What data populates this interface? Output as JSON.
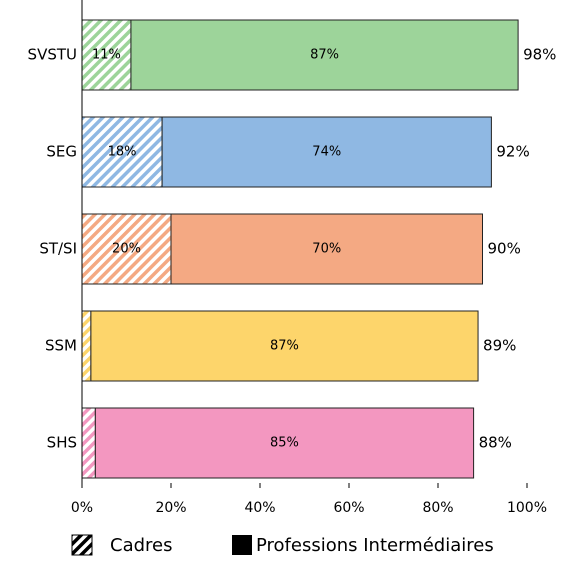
{
  "chart_data": {
    "type": "stacked-barh",
    "categories": [
      "SVSTU",
      "SEG",
      "ST/SI",
      "SSM",
      "SHS"
    ],
    "colors": [
      "#9dd49a",
      "#8fb8e3",
      "#f4a983",
      "#fdd56b",
      "#f397c0"
    ],
    "series": [
      {
        "name": "Cadres",
        "pattern": "hatched",
        "values": [
          11,
          18,
          20,
          2,
          3
        ],
        "value_labels": [
          "11%",
          "18%",
          "20%",
          null,
          null
        ]
      },
      {
        "name": "Professions Intermédiaires",
        "pattern": "solid",
        "values": [
          87,
          74,
          70,
          87,
          85
        ],
        "value_labels": [
          "87%",
          "74%",
          "70%",
          "87%",
          "85%"
        ]
      }
    ],
    "totals": [
      98,
      92,
      90,
      89,
      88
    ],
    "total_labels": [
      "98%",
      "92%",
      "90%",
      "89%",
      "88%"
    ],
    "xlim": [
      0,
      100
    ],
    "xticks": [
      {
        "value": 0,
        "label": "0%"
      },
      {
        "value": 20,
        "label": "20%"
      },
      {
        "value": 40,
        "label": "40%"
      },
      {
        "value": 60,
        "label": "60%"
      },
      {
        "value": 80,
        "label": "80%"
      },
      {
        "value": 100,
        "label": "100%"
      }
    ]
  }
}
